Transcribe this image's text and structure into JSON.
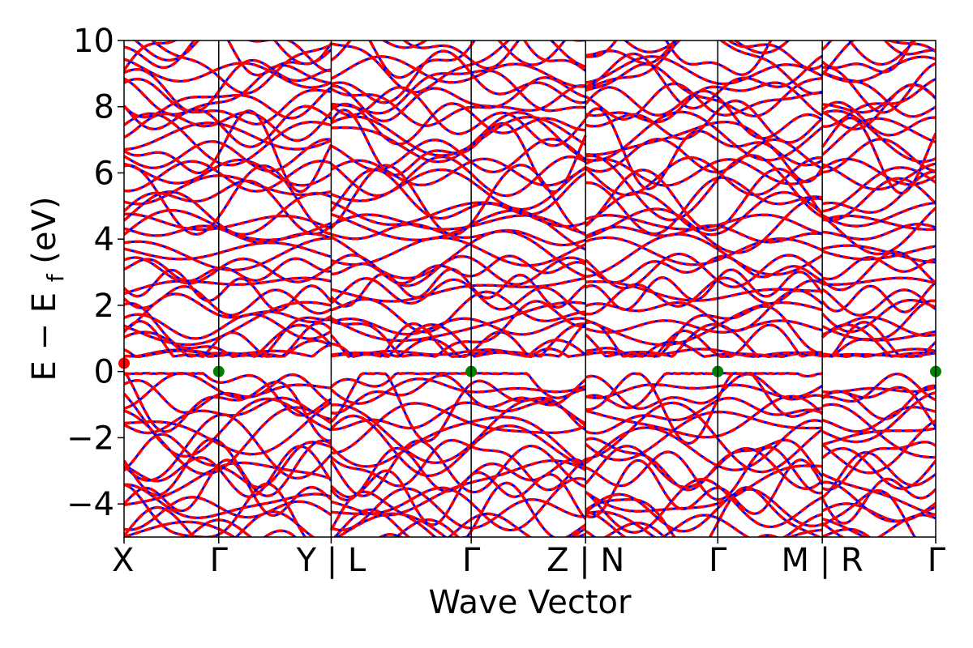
{
  "chart_data": {
    "type": "line",
    "xlabel": "Wave Vector",
    "ylabel": "E − E",
    "ylabel_subscript": "f",
    "ylabel_unit": " (eV)",
    "ylim": [
      -5,
      10
    ],
    "yticks": [
      -4,
      -2,
      0,
      2,
      4,
      6,
      8,
      10
    ],
    "ytick_labels": [
      "−4",
      "−2",
      "0",
      "2",
      "4",
      "6",
      "8",
      "10"
    ],
    "grid": false,
    "segments": [
      {
        "labels": [
          "X",
          "Γ",
          "Y"
        ],
        "x": [
          0,
          0.96,
          2.1
        ]
      },
      {
        "labels": [
          "L",
          "Γ",
          "Z"
        ],
        "x": [
          2.1,
          3.52,
          4.68
        ]
      },
      {
        "labels": [
          "N",
          "Γ",
          "M"
        ],
        "x": [
          4.68,
          6.02,
          7.08
        ]
      },
      {
        "labels": [
          "R",
          "Γ"
        ],
        "x": [
          7.08,
          8.23
        ]
      }
    ],
    "xtick_labels": [
      "X",
      "Γ",
      "Y | L",
      "Γ",
      "Z | N",
      "Γ",
      "M | R",
      "Γ"
    ],
    "xticks": [
      0,
      0.96,
      2.1,
      3.52,
      4.68,
      6.02,
      7.08,
      8.23
    ],
    "band_edges": [
      {
        "x": 0,
        "y": 0.25,
        "label": "CBM"
      },
      {
        "x": 0.96,
        "y": 0.0,
        "label": "VBM"
      },
      {
        "x": 3.52,
        "y": 0.0,
        "label": "VBM"
      },
      {
        "x": 6.02,
        "y": 0.0,
        "label": "VBM"
      },
      {
        "x": 8.23,
        "y": 0.0,
        "label": "VBM"
      }
    ],
    "series": [
      {
        "color": "#0000ff",
        "style": "solid"
      },
      {
        "color": "#ff0000",
        "style": "dashed"
      }
    ],
    "band_count": 60,
    "colors": {
      "band_up": "#0000ff",
      "band_down": "#ff0000",
      "vbm": "#008000",
      "cbm": "#ff0000"
    }
  }
}
